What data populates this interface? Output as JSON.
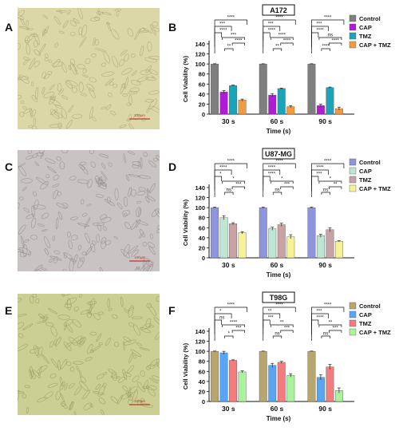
{
  "panels": {
    "A": "A",
    "B": "B",
    "C": "C",
    "D": "D",
    "E": "E",
    "F": "F"
  },
  "micrographs": [
    {
      "scale_bar_label": "100μm",
      "tint": "#dcd7a6",
      "cell_color": "#a6a37a"
    },
    {
      "scale_bar_label": "100μm",
      "tint": "#c9c3c3",
      "cell_color": "#8f8a88"
    },
    {
      "scale_bar_label": "100μm",
      "tint": "#cbcf93",
      "cell_color": "#949a5d"
    }
  ],
  "chart_data": [
    {
      "type": "bar",
      "title": "A172",
      "xlabel": "Time (s)",
      "ylabel": "Cell Viability (%)",
      "ylim": [
        0,
        140
      ],
      "yticks": [
        0,
        20,
        40,
        60,
        80,
        100,
        120,
        140
      ],
      "categories": [
        "30 s",
        "60 s",
        "90 s"
      ],
      "legend_position": "top-right",
      "series": [
        {
          "name": "Control",
          "color": "#7f7f7f",
          "values": [
            100,
            100,
            100
          ],
          "errors": [
            0.5,
            0.5,
            0.5
          ]
        },
        {
          "name": "CAP",
          "color": "#b21bd6",
          "values": [
            44,
            38,
            17
          ],
          "errors": [
            3,
            3,
            3
          ]
        },
        {
          "name": "TMZ",
          "color": "#1aa4b8",
          "values": [
            57,
            51,
            53
          ],
          "errors": [
            1,
            1,
            1
          ]
        },
        {
          "name": "CAP + TMZ",
          "color": "#f39a3d",
          "values": [
            28,
            15,
            11
          ],
          "errors": [
            2,
            2,
            3
          ]
        }
      ],
      "significance": [
        [
          "****",
          "***",
          "****",
          "**",
          "***",
          "****"
        ],
        [
          "****",
          "***",
          "****",
          "**",
          "****",
          "****"
        ],
        [
          "****",
          "***",
          "****",
          "****",
          "ns",
          "****"
        ]
      ]
    },
    {
      "type": "bar",
      "title": "U87-MG",
      "xlabel": "Time (s)",
      "ylabel": "Cell Viability (%)",
      "ylim": [
        0,
        140
      ],
      "yticks": [
        0,
        20,
        40,
        60,
        80,
        100,
        120,
        140
      ],
      "categories": [
        "30 s",
        "60 s",
        "90 s"
      ],
      "legend_position": "top-right",
      "series": [
        {
          "name": "Control",
          "color": "#8e95dc",
          "values": [
            100,
            100,
            100
          ],
          "errors": [
            1,
            1,
            1
          ]
        },
        {
          "name": "CAP",
          "color": "#bfe6d4",
          "values": [
            80,
            58,
            44
          ],
          "errors": [
            4,
            3,
            3
          ]
        },
        {
          "name": "TMZ",
          "color": "#c9a3a3",
          "values": [
            68,
            66,
            56
          ],
          "errors": [
            2,
            3,
            4
          ]
        },
        {
          "name": "CAP + TMZ",
          "color": "#f6f295",
          "values": [
            50,
            42,
            33
          ],
          "errors": [
            2,
            4,
            1
          ]
        }
      ],
      "significance": [
        [
          "****",
          "****",
          "*",
          "ns",
          "*",
          "***"
        ],
        [
          "****",
          "****",
          "****",
          "ns",
          "*",
          "***"
        ],
        [
          "****",
          "****",
          "***",
          "ns",
          "*",
          "**"
        ]
      ]
    },
    {
      "type": "bar",
      "title": "T98G",
      "xlabel": "Time (s)",
      "ylabel": "Cell Viability (%)",
      "ylim": [
        0,
        140
      ],
      "yticks": [
        0,
        20,
        40,
        60,
        80,
        100,
        120,
        140
      ],
      "categories": [
        "30 s",
        "60 s",
        "90 s"
      ],
      "legend_position": "top-right",
      "series": [
        {
          "name": "Control",
          "color": "#b7a76f",
          "values": [
            100,
            100,
            100
          ],
          "errors": [
            0.5,
            0.5,
            0.5
          ]
        },
        {
          "name": "CAP",
          "color": "#58a5f4",
          "values": [
            97,
            72,
            48
          ],
          "errors": [
            3,
            4,
            5
          ]
        },
        {
          "name": "TMZ",
          "color": "#f37c7f",
          "values": [
            82,
            78,
            69
          ],
          "errors": [
            1,
            2,
            5
          ]
        },
        {
          "name": "CAP + TMZ",
          "color": "#aaf29d",
          "values": [
            59,
            52,
            22
          ],
          "errors": [
            2,
            3,
            5
          ]
        }
      ],
      "significance": [
        [
          "****",
          "*",
          "ns",
          "*",
          "****",
          "***"
        ],
        [
          "****",
          "**",
          "***",
          "ns",
          "**",
          "***"
        ],
        [
          "****",
          "***",
          "****",
          "ns",
          "**",
          "***"
        ]
      ]
    }
  ]
}
